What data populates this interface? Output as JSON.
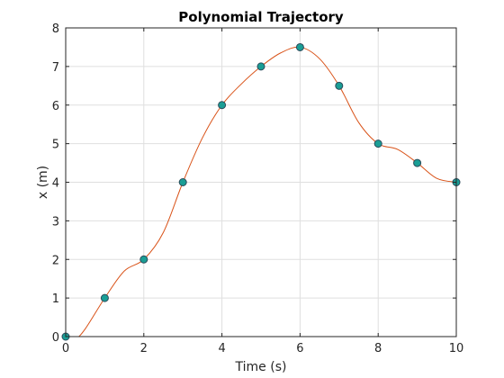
{
  "chart_data": {
    "type": "line",
    "title": "Polynomial Trajectory",
    "xlabel": "Time (s)",
    "ylabel": "x (m)",
    "xlim": [
      0,
      10
    ],
    "ylim": [
      0,
      8
    ],
    "xticks": [
      0,
      2,
      4,
      6,
      8,
      10
    ],
    "yticks": [
      0,
      1,
      2,
      3,
      4,
      5,
      6,
      7,
      8
    ],
    "grid": true,
    "series": [
      {
        "kind": "waypoints",
        "style": "markers",
        "color": "#1a9e95",
        "edge_color": "#2b4a5a",
        "x": [
          0,
          1,
          2,
          3,
          4,
          5,
          6,
          7,
          8,
          9,
          10
        ],
        "y": [
          0,
          1,
          2,
          4,
          6,
          7,
          7.5,
          6.5,
          5,
          4.5,
          4
        ]
      },
      {
        "kind": "trajectory",
        "style": "line",
        "color": "#d95319",
        "x": [
          0,
          0.25,
          0.5,
          1,
          1.5,
          2,
          2.5,
          3,
          3.5,
          4,
          4.5,
          5,
          5.5,
          6,
          6.5,
          7,
          7.5,
          8,
          8.5,
          9,
          9.5,
          10
        ],
        "y": [
          0,
          -0.05,
          0.2,
          1,
          1.7,
          2,
          2.7,
          4,
          5.15,
          6,
          6.55,
          7,
          7.35,
          7.5,
          7.2,
          6.5,
          5.55,
          5,
          4.85,
          4.5,
          4.1,
          4
        ]
      }
    ]
  }
}
